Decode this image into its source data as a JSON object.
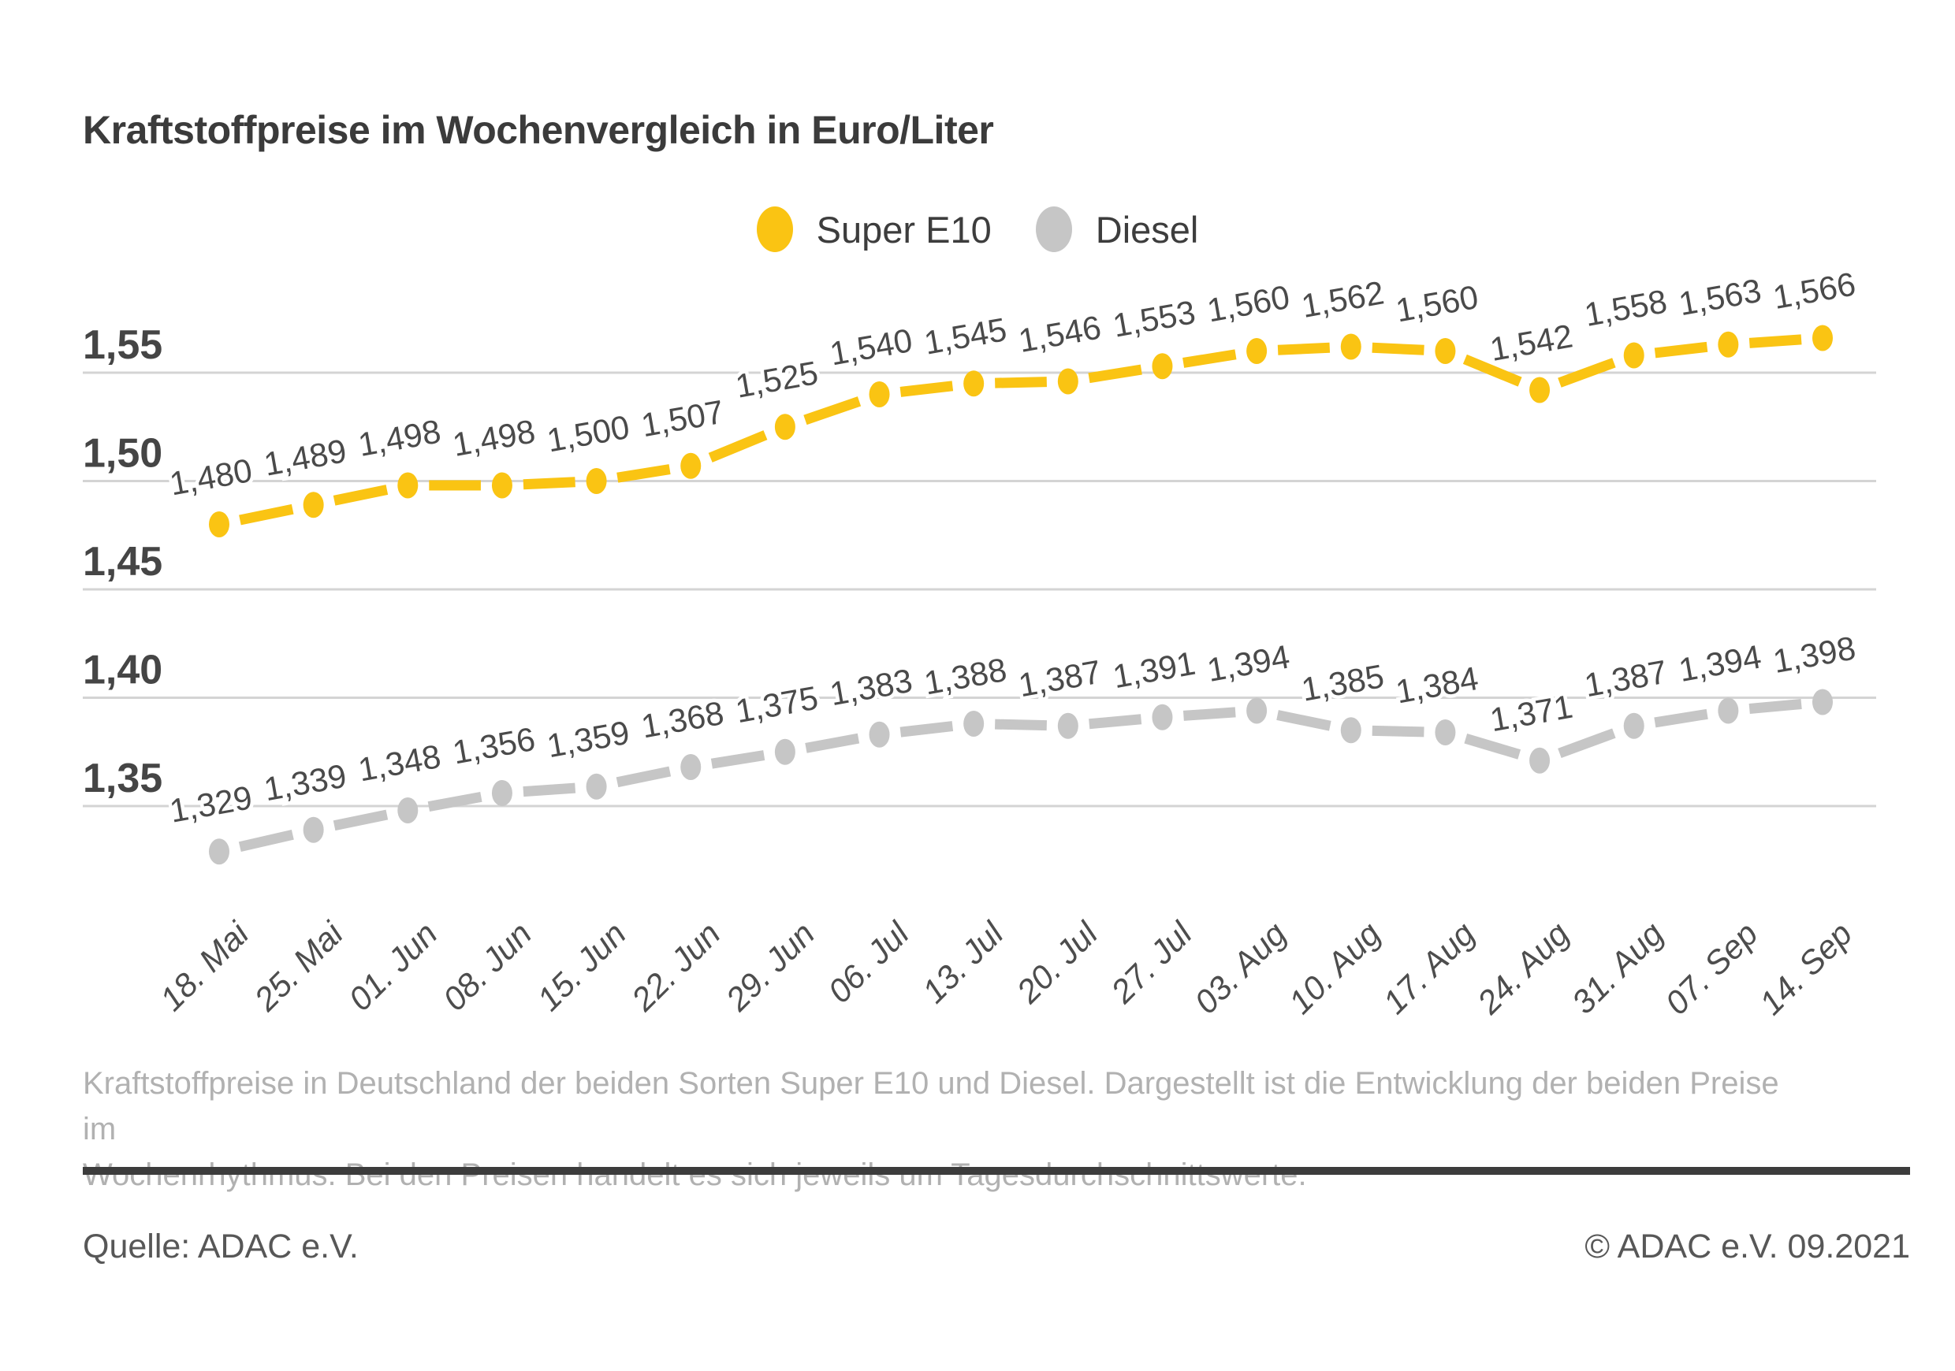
{
  "title": "Kraftstoffpreise im Wochenvergleich in Euro/Liter",
  "legend": {
    "items": [
      {
        "label": "Super E10",
        "color": "#FAC413"
      },
      {
        "label": "Diesel",
        "color": "#C6C6C6"
      }
    ]
  },
  "chart_data": {
    "type": "line",
    "title": "Kraftstoffpreise im Wochenvergleich in Euro/Liter",
    "unit": "Euro/Liter",
    "x": [
      "18. Mai",
      "25. Mai",
      "01. Jun",
      "08. Jun",
      "15. Jun",
      "22. Jun",
      "29. Jun",
      "06. Jul",
      "13. Jul",
      "20. Jul",
      "27. Jul",
      "03. Aug",
      "10. Aug",
      "17. Aug",
      "24. Aug",
      "31. Aug",
      "07. Sep",
      "14. Sep"
    ],
    "series": [
      {
        "name": "Super E10",
        "color": "#FAC413",
        "values": [
          1.48,
          1.489,
          1.498,
          1.498,
          1.5,
          1.507,
          1.525,
          1.54,
          1.545,
          1.546,
          1.553,
          1.56,
          1.562,
          1.56,
          1.542,
          1.558,
          1.563,
          1.566
        ]
      },
      {
        "name": "Diesel",
        "color": "#C6C6C6",
        "values": [
          1.329,
          1.339,
          1.348,
          1.356,
          1.359,
          1.368,
          1.375,
          1.383,
          1.388,
          1.387,
          1.391,
          1.394,
          1.385,
          1.384,
          1.371,
          1.387,
          1.394,
          1.398
        ]
      }
    ],
    "yticks": [
      1.55,
      1.5,
      1.45,
      1.4,
      1.35
    ],
    "ylim": [
      1.305,
      1.585
    ],
    "grid": true,
    "legend_position": "top-center",
    "value_labels": true,
    "decimal_separator": ","
  },
  "caption": {
    "text": "Kraftstoffpreise in Deutschland der beiden Sorten Super E10 und Diesel. Dargestellt ist die Entwicklung der beiden Preise im\nWochenrhythmus. Bei den Preisen handelt es sich jeweils um Tagesdurchschnittswerte."
  },
  "footer": {
    "source": "Quelle: ADAC e.V.",
    "copyright": "© ADAC e.V. 09.2021"
  }
}
